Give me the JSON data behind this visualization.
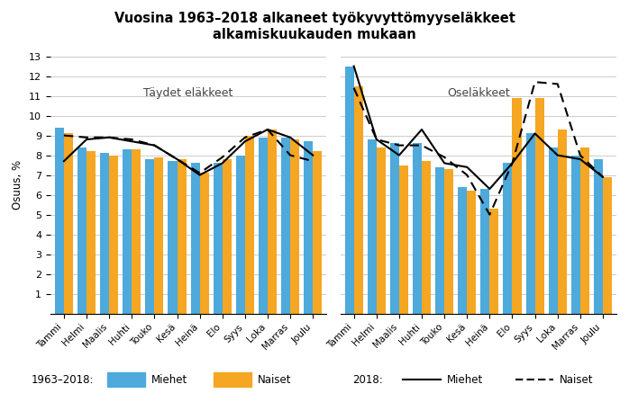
{
  "title_line1": "Vuosina 1963–2018 alkaneet työkyvyttömyyseläkkeet",
  "title_line2": "alkamiskuukauden mukaan",
  "ylabel": "Osuus, %",
  "months": [
    "Tammi",
    "Helmi",
    "Maalis",
    "Huhti",
    "Touko",
    "Kesä",
    "Heinä",
    "Elo",
    "Syys",
    "Loka",
    "Marras",
    "Joulu"
  ],
  "label_taydet": "Täydet eläkkeet",
  "label_osa": "Oseläkkeet",
  "taydet_miehet_bar": [
    9.4,
    8.4,
    8.1,
    8.3,
    7.8,
    7.7,
    7.6,
    7.6,
    8.0,
    8.9,
    8.9,
    8.7
  ],
  "taydet_naiset_bar": [
    9.1,
    8.2,
    8.0,
    8.3,
    7.9,
    7.8,
    7.1,
    7.8,
    9.0,
    9.3,
    8.8,
    8.2
  ],
  "taydet_miehet_line": [
    7.7,
    8.8,
    8.9,
    8.7,
    8.5,
    7.8,
    7.0,
    7.6,
    8.7,
    9.3,
    8.9,
    8.0
  ],
  "taydet_naiset_line": [
    9.0,
    8.9,
    8.9,
    8.8,
    8.5,
    7.8,
    7.1,
    7.9,
    8.9,
    9.3,
    8.0,
    7.7
  ],
  "osa_miehet_bar": [
    12.5,
    8.8,
    8.6,
    8.6,
    7.4,
    6.4,
    6.3,
    7.6,
    9.1,
    8.4,
    8.0,
    7.8
  ],
  "osa_naiset_bar": [
    11.5,
    8.4,
    7.5,
    7.7,
    7.3,
    6.2,
    5.3,
    10.9,
    10.9,
    9.3,
    8.4,
    6.9
  ],
  "osa_miehet_line": [
    12.5,
    8.8,
    8.0,
    9.3,
    7.6,
    7.4,
    6.3,
    7.6,
    9.1,
    8.0,
    7.8,
    6.9
  ],
  "osa_naiset_line": [
    11.4,
    8.8,
    8.5,
    8.5,
    7.9,
    7.0,
    5.0,
    7.6,
    11.7,
    11.6,
    8.0,
    6.9
  ],
  "bar_miehet_color": "#4DAADB",
  "bar_naiset_color": "#F5A623",
  "line_miehet_color": "#000000",
  "line_naiset_color": "#000000",
  "ylim": [
    0,
    13
  ],
  "yticks": [
    1,
    2,
    3,
    4,
    5,
    6,
    7,
    8,
    9,
    10,
    11,
    12,
    13
  ],
  "legend_1963_miehet": "Miehet",
  "legend_1963_naiset": "Naiset",
  "legend_2018_miehet": "Miehet",
  "legend_2018_naiset": "Naiset",
  "legend_prefix_1": "1963–2018:",
  "legend_prefix_2": "2018:"
}
